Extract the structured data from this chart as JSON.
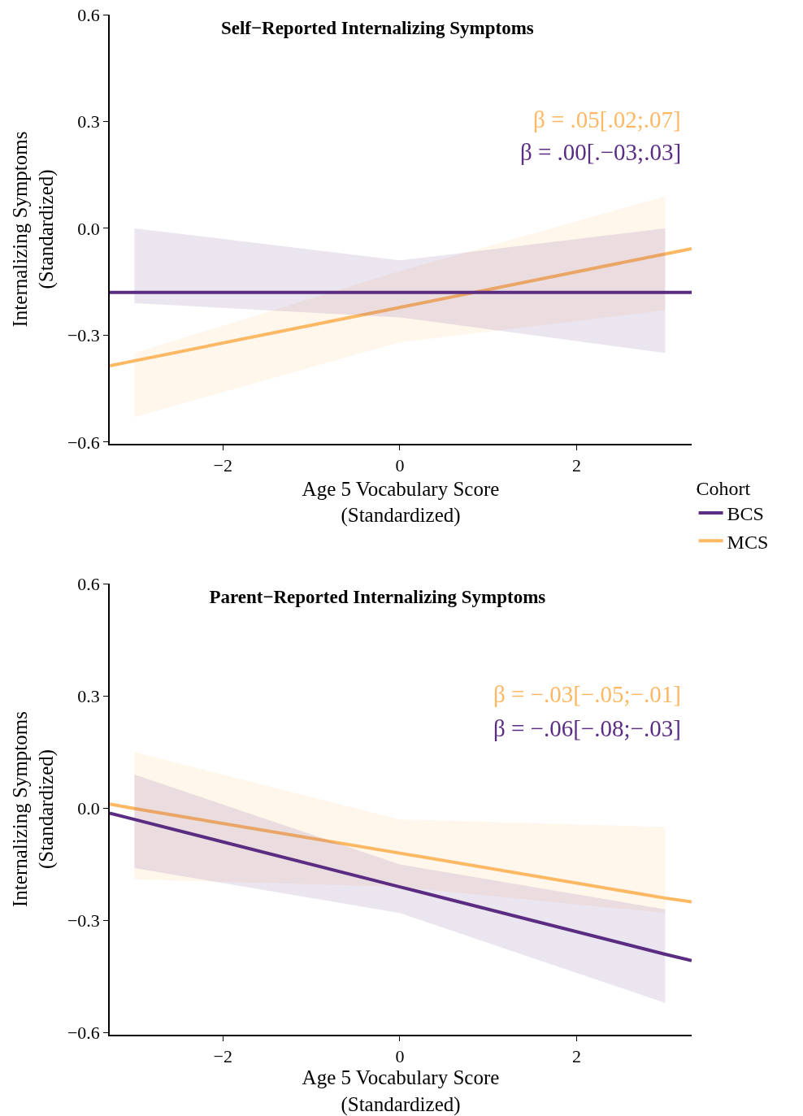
{
  "chart_data": [
    {
      "type": "line",
      "title": "Self−Reported Internalizing Symptoms",
      "xlabel": "Age 5 Vocabulary Score\n(Standardized)",
      "ylabel": "Internalizing Symptoms\n(Standardized)",
      "legend_title": "Cohort",
      "legend": "right",
      "grid": false,
      "annotations": [
        "β = .05[.02;.07]",
        "β = .00[.−03;.03]"
      ],
      "xlim": [
        -3.28,
        3.3
      ],
      "xticks": [
        {
          "value": -2,
          "label": "−2"
        },
        {
          "value": 0,
          "label": "0"
        },
        {
          "value": 2,
          "label": "2"
        }
      ],
      "ylim": [
        -0.605,
        0.6
      ],
      "yticks": [
        {
          "value": -0.6,
          "label": "−0.6"
        },
        {
          "value": -0.3,
          "label": "−0.3"
        },
        {
          "value": 0,
          "label": "0.0"
        },
        {
          "value": 0.3,
          "label": "0.3"
        },
        {
          "value": 0.6,
          "label": "0.6"
        }
      ],
      "series": [
        {
          "name": "MCS",
          "color": "#fdb863",
          "x": [
            -3.28,
            -3,
            0,
            3,
            3.3
          ],
          "values": [
            -0.386,
            -0.372,
            -0.222,
            -0.072,
            -0.057
          ],
          "lower": [
            null,
            -0.53,
            -0.32,
            -0.23,
            null
          ],
          "upper": [
            null,
            -0.35,
            -0.12,
            0.09,
            null
          ]
        },
        {
          "name": "BCS",
          "color": "#5a2d82",
          "x": [
            -3.28,
            -3,
            0,
            3,
            3.3
          ],
          "values": [
            -0.18,
            -0.18,
            -0.18,
            -0.18,
            -0.18
          ],
          "lower": [
            null,
            -0.21,
            -0.25,
            -0.35,
            null
          ],
          "upper": [
            null,
            0.0,
            -0.09,
            0.0,
            null
          ]
        }
      ]
    },
    {
      "type": "line",
      "title": "Parent−Reported Internalizing Symptoms",
      "xlabel": "Age 5 Vocabulary Score\n(Standardized)",
      "ylabel": "Internalizing Symptoms\n(Standardized)",
      "grid": false,
      "annotations": [
        "β = −.03[−.05;−.01]",
        "β = −.06[−.08;−.03]"
      ],
      "xlim": [
        -3.28,
        3.3
      ],
      "xticks": [
        {
          "value": -2,
          "label": "−2"
        },
        {
          "value": 0,
          "label": "0"
        },
        {
          "value": 2,
          "label": "2"
        }
      ],
      "ylim": [
        -0.605,
        0.6
      ],
      "yticks": [
        {
          "value": -0.6,
          "label": "−0.6"
        },
        {
          "value": -0.3,
          "label": "−0.3"
        },
        {
          "value": 0,
          "label": "0.0"
        },
        {
          "value": 0.3,
          "label": "0.3"
        },
        {
          "value": 0.6,
          "label": "0.6"
        }
      ],
      "series": [
        {
          "color": "#fdb863",
          "x": [
            -3.28,
            -3,
            0,
            3,
            3.3
          ],
          "values": [
            0.011,
            -0.001,
            -0.12,
            -0.24,
            -0.25
          ],
          "lower": [
            null,
            -0.19,
            -0.21,
            -0.28,
            null
          ],
          "upper": [
            null,
            0.15,
            -0.03,
            -0.05,
            null
          ]
        },
        {
          "color": "#5a2d82",
          "x": [
            -3.28,
            -3,
            0,
            3,
            3.3
          ],
          "values": [
            -0.013,
            -0.03,
            -0.21,
            -0.39,
            -0.407
          ],
          "lower": [
            null,
            -0.16,
            -0.28,
            -0.52,
            null
          ],
          "upper": [
            null,
            0.09,
            -0.15,
            -0.27,
            null
          ]
        }
      ]
    }
  ]
}
